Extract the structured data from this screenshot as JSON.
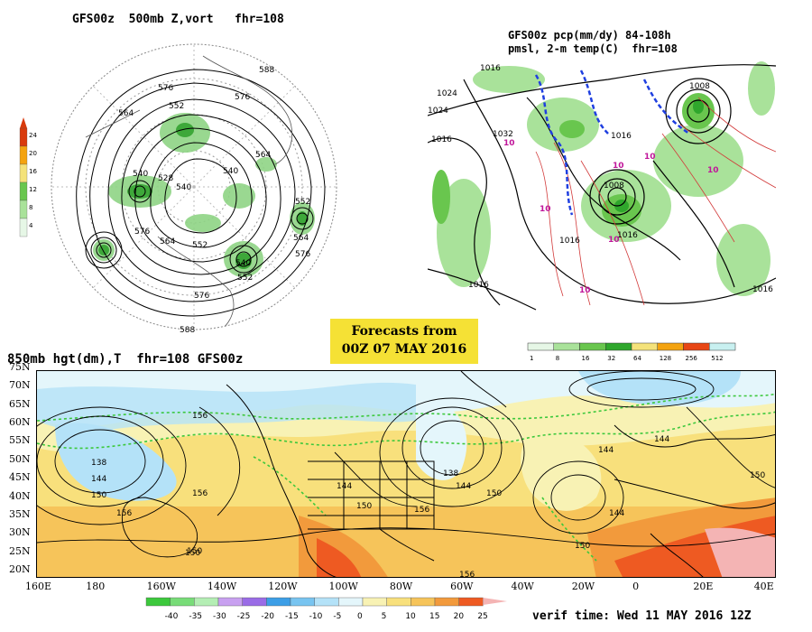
{
  "panels": {
    "top_left": {
      "title": "GFS00z  500mb Z,vort   fhr=108",
      "colorbar": {
        "ticks": [
          "24",
          "20",
          "16",
          "12",
          "8",
          "4"
        ],
        "colors": [
          "#d93a0c",
          "#f4a30f",
          "#f4e27a",
          "#69c64e",
          "#a9e29a",
          "#e6f7e6"
        ]
      },
      "labels": [
        "588",
        "576",
        "576",
        "564",
        "552",
        "540",
        "540",
        "528",
        "540",
        "564",
        "576",
        "552",
        "564",
        "576",
        "564",
        "552",
        "540",
        "552",
        "576",
        "588"
      ]
    },
    "top_right": {
      "title_line1": "GFS00z pcp(mm/dy) 84-108h",
      "title_line2": "pmsl, 2-m temp(C)  fhr=108",
      "labels": [
        "1016",
        "1008",
        "1024",
        "1024",
        "1016",
        "1032",
        "1016",
        "1008",
        "1016",
        "1016",
        "1016",
        "1016"
      ],
      "temp_labels": [
        "10",
        "10",
        "10",
        "10",
        "10",
        "10",
        "10"
      ],
      "colorbar": {
        "ticks": [
          "1",
          "8",
          "16",
          "32",
          "64",
          "128",
          "256",
          "512"
        ],
        "colors": [
          "#e6f7e6",
          "#a9e29a",
          "#69c64e",
          "#2fa72c",
          "#f4e27a",
          "#f4a30f",
          "#e84614",
          "#c8f0f0"
        ]
      }
    },
    "banner": {
      "line1": "Forecasts from",
      "line2": "00Z 07 MAY 2016"
    },
    "bottom": {
      "title": "850mb hgt(dm),T  fhr=108 GFS00z",
      "y_ticks": [
        "75N",
        "70N",
        "65N",
        "60N",
        "55N",
        "50N",
        "45N",
        "40N",
        "35N",
        "30N",
        "25N",
        "20N"
      ],
      "x_ticks": [
        "160E",
        "180",
        "160W",
        "140W",
        "120W",
        "100W",
        "80W",
        "60W",
        "40W",
        "20W",
        "0",
        "20E",
        "40E"
      ],
      "contour_labels": [
        "156",
        "138",
        "144",
        "150",
        "156",
        "150",
        "144",
        "150",
        "156",
        "138",
        "144",
        "150",
        "156",
        "144",
        "144",
        "150",
        "150",
        "150",
        "144",
        "156"
      ],
      "colorbar": {
        "ticks": [
          "-40",
          "-35",
          "-30",
          "-25",
          "-20",
          "-15",
          "-10",
          "-5",
          "0",
          "5",
          "10",
          "15",
          "20",
          "25"
        ],
        "colors": [
          "#3cc83c",
          "#78dc78",
          "#b4eeb4",
          "#c8a0f0",
          "#9a6ce6",
          "#3c9ee6",
          "#78c4f0",
          "#b4e2f8",
          "#e4f6fb",
          "#f8f2b4",
          "#f8e07c",
          "#f6c45a",
          "#f29a3c",
          "#ee5a22",
          "#f4b4b4"
        ]
      },
      "verif": "verif time: Wed 11 MAY 2016 12Z"
    }
  }
}
